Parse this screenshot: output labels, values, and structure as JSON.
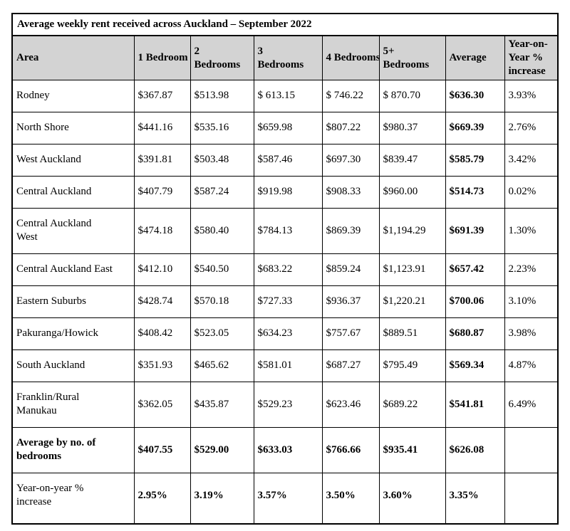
{
  "title": "Average weekly rent received across Auckland – September 2022",
  "table": {
    "columns": [
      "Area",
      "1 Bedroom",
      "2\nBedrooms",
      "3\nBedrooms",
      "4 Bedrooms",
      "5+\nBedrooms",
      "Average",
      "Year-on-\nYear %\nincrease"
    ],
    "rows": [
      {
        "cells": [
          "Rodney",
          "$367.87",
          "$513.98",
          "$ 613.15",
          "$ 746.22",
          "$ 870.70",
          "$636.30",
          "3.93%"
        ],
        "bold_cells": [
          6
        ]
      },
      {
        "cells": [
          "North Shore",
          "$441.16",
          "$535.16",
          "$659.98",
          "$807.22",
          "$980.37",
          "$669.39",
          "2.76%"
        ],
        "bold_cells": [
          6
        ]
      },
      {
        "cells": [
          "West Auckland",
          "$391.81",
          "$503.48",
          "$587.46",
          "$697.30",
          "$839.47",
          "$585.79",
          "3.42%"
        ],
        "bold_cells": [
          6
        ]
      },
      {
        "cells": [
          "Central Auckland",
          "$407.79",
          "$587.24",
          "$919.98",
          "$908.33",
          "$960.00",
          "$514.73",
          "0.02%"
        ],
        "bold_cells": [
          6
        ]
      },
      {
        "cells": [
          "Central Auckland\nWest",
          "$474.18",
          "$580.40",
          "$784.13",
          "$869.39",
          "$1,194.29",
          "$691.39",
          "1.30%"
        ],
        "bold_cells": [
          6
        ]
      },
      {
        "cells": [
          "Central Auckland East",
          "$412.10",
          "$540.50",
          "$683.22",
          "$859.24",
          "$1,123.91",
          "$657.42",
          "2.23%"
        ],
        "bold_cells": [
          6
        ]
      },
      {
        "cells": [
          "Eastern Suburbs",
          "$428.74",
          "$570.18",
          "$727.33",
          "$936.37",
          "$1,220.21",
          "$700.06",
          "3.10%"
        ],
        "bold_cells": [
          6
        ]
      },
      {
        "cells": [
          "Pakuranga/Howick",
          "$408.42",
          "$523.05",
          "$634.23",
          "$757.67",
          "$889.51",
          "$680.87",
          "3.98%"
        ],
        "bold_cells": [
          6
        ]
      },
      {
        "cells": [
          "South Auckland",
          "$351.93",
          "$465.62",
          "$581.01",
          "$687.27",
          "$795.49",
          "$569.34",
          "4.87%"
        ],
        "bold_cells": [
          6
        ]
      },
      {
        "cells": [
          "Franklin/Rural\nManukau",
          "$362.05",
          "$435.87",
          "$529.23",
          "$623.46",
          "$689.22",
          "$541.81",
          "6.49%"
        ],
        "bold_cells": [
          6
        ]
      },
      {
        "cells": [
          "Average by no. of\nbedrooms",
          "$407.55",
          "$529.00",
          "$633.03",
          "$766.66",
          "$935.41",
          "$626.08",
          ""
        ],
        "bold_cells": [
          0,
          1,
          2,
          3,
          4,
          5,
          6
        ]
      },
      {
        "cells": [
          "Year-on-year %\nincrease",
          "2.95%",
          "3.19%",
          "3.57%",
          "3.50%",
          "3.60%",
          "3.35%",
          ""
        ],
        "bold_cells": [
          1,
          2,
          3,
          4,
          5,
          6
        ]
      }
    ]
  },
  "colors": {
    "header_bg": "#d3d3d3",
    "border": "#000000",
    "title_bg": "#ffffff",
    "text": "#000000"
  }
}
